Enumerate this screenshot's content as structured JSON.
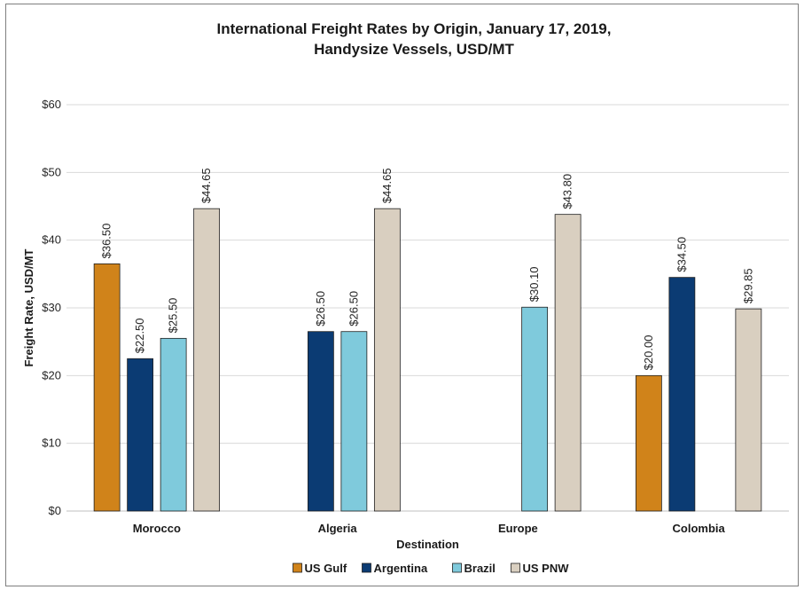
{
  "chart_data": {
    "type": "bar",
    "title_lines": [
      "International Freight Rates by Origin, January 17, 2019,",
      "Handysize Vessels, USD/MT"
    ],
    "xlabel": "Destination",
    "ylabel": "Freight Rate, USD/MT",
    "ylim": [
      0,
      60
    ],
    "yticks": [
      0,
      10,
      20,
      30,
      40,
      50,
      60
    ],
    "ytick_labels": [
      "$0",
      "$10",
      "$20",
      "$30",
      "$40",
      "$50",
      "$60"
    ],
    "grid": true,
    "legend_position": "bottom",
    "categories": [
      "Morocco",
      "Algeria",
      "Europe",
      "Colombia"
    ],
    "series": [
      {
        "name": "US Gulf",
        "color": "#D0831A",
        "values": [
          36.5,
          null,
          null,
          20.0
        ],
        "labels": [
          "$36.50",
          null,
          null,
          "$20.00"
        ]
      },
      {
        "name": "Argentina",
        "color": "#0B3B73",
        "values": [
          22.5,
          26.5,
          null,
          34.5
        ],
        "labels": [
          "$22.50",
          "$26.50",
          null,
          "$34.50"
        ]
      },
      {
        "name": "Brazil",
        "color": "#7FCADC",
        "values": [
          25.5,
          26.5,
          30.1,
          null
        ],
        "labels": [
          "$25.50",
          "$26.50",
          "$30.10",
          null
        ]
      },
      {
        "name": "US PNW",
        "color": "#D9CFC0",
        "values": [
          44.65,
          44.65,
          43.8,
          29.85
        ],
        "labels": [
          "$44.65",
          "$44.65",
          "$43.80",
          "$29.85"
        ]
      }
    ]
  }
}
